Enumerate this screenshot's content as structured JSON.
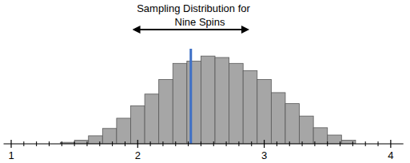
{
  "chart_data": {
    "type": "histogram",
    "title": "Sampling Distribution for\nNine Spins",
    "bins": [
      1.3889,
      1.5,
      1.6111,
      1.7222,
      1.8333,
      1.9444,
      2.0556,
      2.1667,
      2.2778,
      2.3889,
      2.5,
      2.6111,
      2.7222,
      2.8333,
      2.9444,
      3.0556,
      3.1667,
      3.2778,
      3.3889,
      3.5,
      3.6111,
      3.7222
    ],
    "values": [
      2,
      5,
      11,
      21,
      35,
      52,
      68,
      88,
      110,
      113,
      120,
      118,
      110,
      100,
      88,
      70,
      55,
      38,
      22,
      12,
      5
    ],
    "color": "#a6a6a6",
    "xlim": [
      0.94,
      4.1
    ],
    "xticks": [
      1,
      2,
      3,
      4
    ],
    "minor_ticks": [
      1.1,
      1.2,
      1.3,
      1.4,
      1.5,
      1.6,
      1.7,
      1.8,
      1.9,
      2.1,
      2.2,
      2.3,
      2.4,
      2.5,
      2.6,
      2.7,
      2.8,
      2.9,
      3.1,
      3.2,
      3.3,
      3.4,
      3.5,
      3.6,
      3.7,
      3.8,
      3.9
    ],
    "ylim": [
      0,
      130
    ],
    "tick_labels": "x",
    "mean_line": 2.42,
    "mean_line_color": "#3d6fc6",
    "arrow_range": [
      1.97,
      2.87
    ]
  }
}
